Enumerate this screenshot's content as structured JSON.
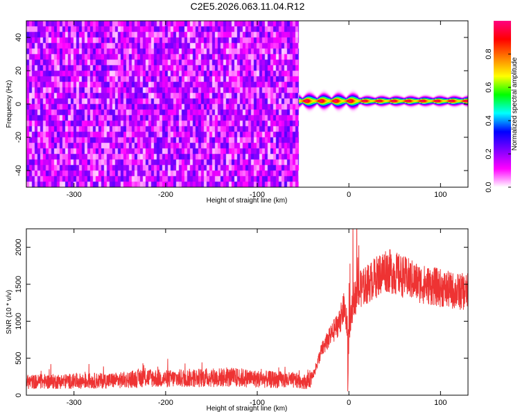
{
  "title": "C2E5.2026.063.11.04.R12",
  "chart_data": [
    {
      "type": "heatmap",
      "name": "spectrogram",
      "xlabel": "Height of straight line (km)",
      "ylabel": "Frequency (Hz)",
      "xlim": [
        -352,
        130
      ],
      "ylim": [
        -50,
        50
      ],
      "xticks": [
        -300,
        -200,
        -100,
        0,
        100
      ],
      "xtick_labels": [
        "-300",
        "-200",
        "-100",
        "0",
        "100"
      ],
      "yticks": [
        -40,
        -20,
        0,
        20,
        40
      ],
      "ytick_labels": [
        "-40",
        "-20",
        "0",
        "20",
        "40"
      ],
      "noise_region_x": [
        -352,
        -55
      ],
      "signal_region_x": [
        -55,
        130
      ],
      "signal_frequency_hz": 2,
      "colorbar": {
        "label": "Normalized spectral amplitude",
        "range": [
          0,
          1
        ],
        "ticks": [
          0.0,
          0.2,
          0.4,
          0.6,
          0.8
        ],
        "tick_labels": [
          "0.0",
          "0.2",
          "0.4",
          "0.6",
          "0.8"
        ],
        "colors": [
          "#ffffff",
          "#ff00ff",
          "#8000ff",
          "#0000ff",
          "#00ffff",
          "#00ff00",
          "#ffff00",
          "#ff8000",
          "#ff0000",
          "#ff0080"
        ]
      }
    },
    {
      "type": "line",
      "name": "snr",
      "xlabel": "Height of straight line (km)",
      "ylabel": "SNR (10 * v/v)",
      "xlim": [
        -352,
        130
      ],
      "ylim": [
        0,
        2250
      ],
      "xticks": [
        -300,
        -200,
        -100,
        0,
        100
      ],
      "xtick_labels": [
        "-300",
        "-200",
        "-100",
        "0",
        "100"
      ],
      "yticks": [
        0,
        500,
        1000,
        1500,
        2000
      ],
      "ytick_labels": [
        "0",
        "500",
        "1000",
        "1500",
        "2000"
      ],
      "color": "#ee3333",
      "envelope": {
        "x": [
          -352,
          -300,
          -250,
          -220,
          -200,
          -180,
          -150,
          -120,
          -100,
          -80,
          -60,
          -45,
          -38,
          -30,
          -20,
          -10,
          -5,
          0,
          5,
          10,
          20,
          30,
          40,
          50,
          60,
          70,
          80,
          90,
          100,
          110,
          120,
          130
        ],
        "y": [
          180,
          190,
          200,
          240,
          220,
          230,
          240,
          240,
          220,
          210,
          200,
          180,
          300,
          600,
          800,
          1000,
          1200,
          800,
          1300,
          1400,
          1500,
          1600,
          1700,
          1650,
          1600,
          1550,
          1500,
          1480,
          1450,
          1420,
          1400,
          1400
        ]
      }
    }
  ]
}
